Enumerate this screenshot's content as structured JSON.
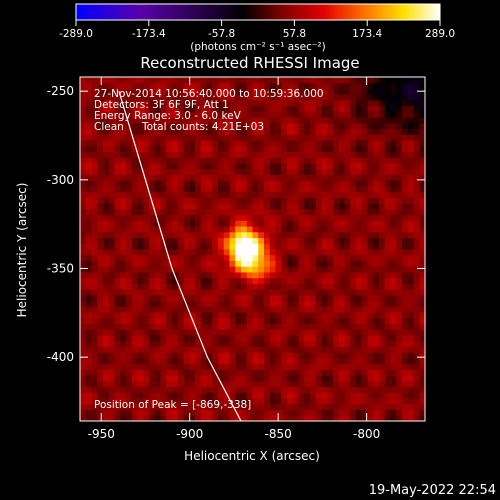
{
  "colorbar": {
    "tick_labels": [
      "-289.0",
      "-173.4",
      "-57.8",
      "57.8",
      "173.4",
      "289.0"
    ],
    "tick_values": [
      -289.0,
      -173.4,
      -57.8,
      57.8,
      173.4,
      289.0
    ],
    "range": [
      -289.0,
      289.0
    ],
    "units_label": "(photons cm⁻² s⁻¹ asec⁻²)",
    "colormap": "rainbow: blue → purple → black → dark red → red → orange → yellow → white",
    "colors": [
      "#0000ff",
      "#5a00a8",
      "#000000",
      "#7a0000",
      "#e00000",
      "#ff7a00",
      "#ffe000",
      "#ffffff"
    ]
  },
  "title": "Reconstructed RHESSI Image",
  "info": {
    "time": "27-Nov-2014 10:56:40.000 to 10:59:36.000",
    "detectors": "Detectors: 3F 6F 9F, Att 1",
    "energy": "Energy Range: 3.0 - 6.0 keV",
    "clean": "Clean",
    "counts": "Total counts: 4.21E+03",
    "peak": "Position of Peak = [-869,-338]"
  },
  "footer": {
    "date": "19-May-2022 22:54"
  },
  "chart_data": {
    "type": "heatmap",
    "title": "Reconstructed RHESSI Image",
    "xlabel": "Heliocentric X (arcsec)",
    "ylabel": "Heliocentric Y (arcsec)",
    "xlim": [
      -962,
      -767
    ],
    "ylim": [
      -436,
      -242
    ],
    "x_ticks": [
      -950,
      -900,
      -850,
      -800
    ],
    "y_ticks": [
      -250,
      -300,
      -350,
      -400
    ],
    "x_tick_labels": [
      "-950",
      "-900",
      "-850",
      "-800"
    ],
    "y_tick_labels": [
      "-250",
      "-300",
      "-350",
      "-400"
    ],
    "peak": {
      "x": -869,
      "y": -338,
      "value": 289.0
    },
    "limb_arc": {
      "description": "white solar-limb line",
      "points": [
        [
          -940,
          -250
        ],
        [
          -925,
          -300
        ],
        [
          -910,
          -350
        ],
        [
          -890,
          -400
        ],
        [
          -871,
          -436
        ]
      ]
    },
    "background": "low-level positive noise (dark red ripples) with a faint negative patch at top-right"
  }
}
